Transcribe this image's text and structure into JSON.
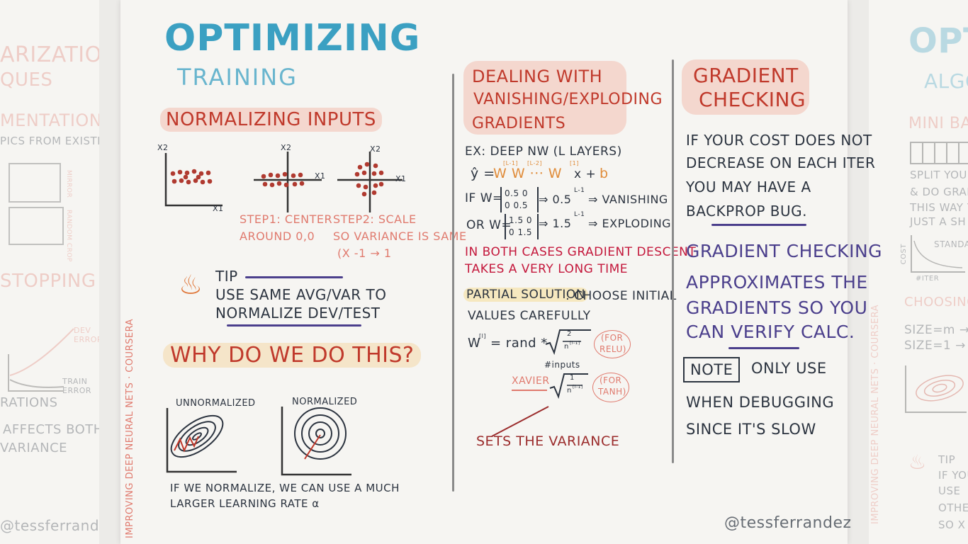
{
  "left_bg": {
    "lines": [
      "ARIZATION",
      "QUES",
      "MENTATION",
      "PICS FROM EXISTING",
      "STOPPING",
      "DEV ERROR",
      "TRAIN ERROR",
      "RATIONS",
      "AFFECTS BOTH",
      "VARIANCE",
      "@tessferrandez"
    ],
    "side": [
      "MIRROR",
      "RANDOM CROP"
    ]
  },
  "right_bg": {
    "lines": [
      "OPTI",
      "ALGO",
      "MINI BAT",
      "SPLIT YOUR",
      "& DO GRAD",
      "THIS WAY Y",
      "JUST A SH",
      "COST",
      "STANDARD",
      "#ITER",
      "CHOOSING T",
      "SIZE=m →",
      "SIZE=1 →",
      "TIP",
      "IF YOU",
      "USE",
      "OTHE",
      "SO X"
    ],
    "vertical": "IMPROVING DEEP NEURAL NETS · COURSERA"
  },
  "title": {
    "main": "OPTIMIZING",
    "sub": "TRAINING"
  },
  "vertical_label": "IMPROVING DEEP NEURAL NETS · COURSERA",
  "normalizing": {
    "heading": "NORMALIZING INPUTS",
    "axes": {
      "x1": "X1",
      "x2": "X2"
    },
    "step1": [
      "STEP1: CENTER",
      "AROUND 0,0"
    ],
    "step2": [
      "STEP2: SCALE",
      "SO VARIANCE IS SAME",
      "(X -1 → 1"
    ]
  },
  "tip": {
    "label": "TIP",
    "lines": [
      "USE SAME AVG/VAR TO",
      "NORMALIZE DEV/TEST"
    ]
  },
  "why": {
    "heading": "WHY DO WE DO THIS?",
    "unnormalized": "UNNORMALIZED",
    "normalized": "NORMALIZED",
    "caption": [
      "IF WE NORMALIZE, WE CAN USE A MUCH",
      "LARGER LEARNING RATE α"
    ]
  },
  "vanishing": {
    "heading": [
      "DEALING WITH",
      "VANISHING/EXPLODING",
      "GRADIENTS"
    ],
    "ex": "EX: DEEP NW (L LAYERS)",
    "yhat_prefix": "ŷ =",
    "w_terms": "W   W  ··· W",
    "sup_terms": [
      "[L-1]",
      "[L-2]",
      "[1]"
    ],
    "x_plus": "x +",
    "b": "b",
    "if_w": "IF W=",
    "m1": [
      "0.5 0",
      "0 0.5"
    ],
    "r1": "⇒ 0.5",
    "r1_sup": "L-1",
    "r1_end": "⇒ VANISHING",
    "or_w": "OR W=",
    "m2": [
      "1.5 0",
      "0 1.5"
    ],
    "r2": "⇒ 1.5",
    "r2_sup": "L-1",
    "r2_end": "⇒ EXPLODING",
    "warning": [
      "IN BOTH CASES GRADIENT DESCENT",
      "TAKES A VERY LONG TIME"
    ],
    "partial": "PARTIAL SOLUTION",
    "partial_rest": ": CHOOSE INITIAL",
    "values": "VALUES CAREFULLY",
    "winit": "W",
    "winit_sup": "[l]",
    "winit_rest": "= rand *",
    "frac_num": "2",
    "frac_den": "n",
    "frac_den_sup": "[l-1]",
    "for_relu": [
      "(FOR",
      "RELU)"
    ],
    "inputs": "#inputs",
    "xavier": "XAVIER",
    "frac2_num": "1",
    "frac2_den": "n",
    "frac2_den_sup": "[l-1]",
    "for_tanh": [
      "(FOR",
      "TANH)"
    ],
    "sets": "SETS THE VARIANCE"
  },
  "gradient": {
    "heading": [
      "GRADIENT",
      "CHECKING"
    ],
    "intro": [
      "IF YOUR COST DOES NOT",
      "DECREASE ON EACH ITER",
      "YOU MAY HAVE A",
      "BACKPROP BUG."
    ],
    "approx": [
      "GRADIENT CHECKING",
      "APPROXIMATES THE",
      "GRADIENTS SO YOU",
      "CAN VERIFY CALC."
    ],
    "note_label": "NOTE",
    "note_rest": "ONLY USE",
    "note_lines": [
      "WHEN DEBUGGING",
      "SINCE IT'S SLOW"
    ]
  },
  "signature": "@tessferrandez"
}
